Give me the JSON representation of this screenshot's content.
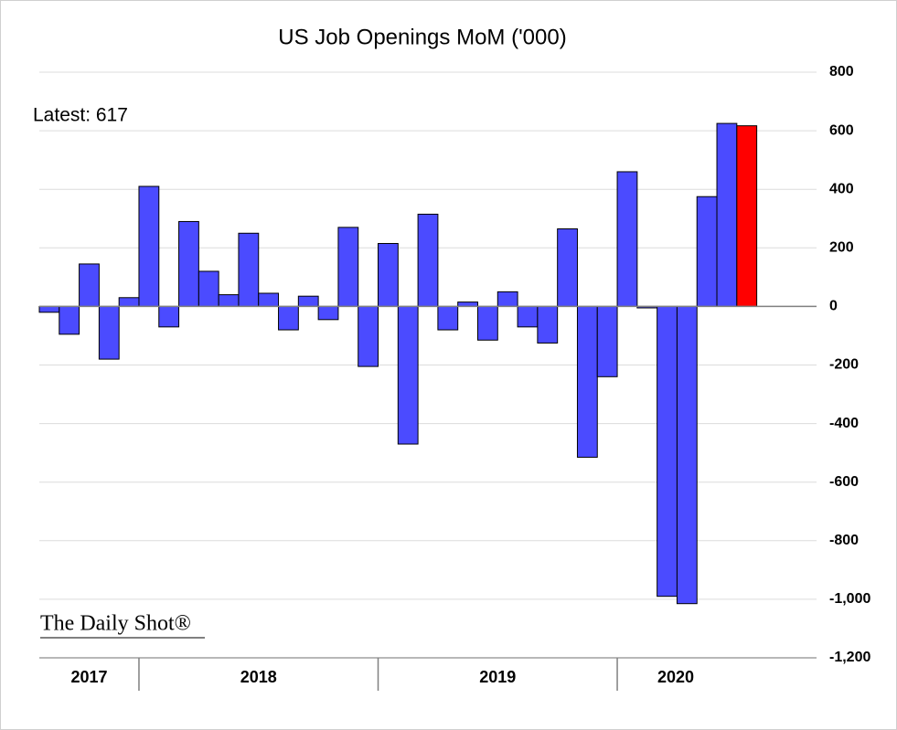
{
  "chart_data": {
    "type": "bar",
    "title": "US Job Openings MoM ('000)",
    "annotation": "Latest:  617",
    "watermark": "The Daily Shot®",
    "categories": [
      null,
      null,
      null,
      null,
      null,
      null,
      null,
      null,
      null,
      null,
      null,
      null,
      null,
      null,
      null,
      null,
      null,
      null,
      null,
      null,
      null,
      null,
      null,
      null,
      null,
      null,
      null,
      null,
      null,
      null,
      null,
      null,
      null,
      null,
      null,
      null
    ],
    "values": [
      -20,
      -95,
      145,
      -180,
      30,
      410,
      -70,
      290,
      120,
      40,
      250,
      45,
      -80,
      35,
      -45,
      270,
      -205,
      215,
      -470,
      315,
      -80,
      15,
      -115,
      50,
      -70,
      -125,
      265,
      -515,
      -240,
      460,
      -5,
      -990,
      -1015,
      375,
      625,
      617
    ],
    "color": "#4b4bff",
    "highlight_color": "#ff0000",
    "highlight_index": 35,
    "year_groups": [
      {
        "label": "2017",
        "span": 5
      },
      {
        "label": "2018",
        "span": 12
      },
      {
        "label": "2019",
        "span": 12
      },
      {
        "label": "2020",
        "span": 7
      }
    ],
    "ylim": [
      -1200,
      800
    ],
    "yticks": [
      {
        "value": -1200,
        "label": "-1,200"
      },
      {
        "value": -1000,
        "label": "-1,000"
      },
      -800,
      -600,
      -400,
      -200,
      0,
      200,
      400,
      600,
      800
    ],
    "grid": true,
    "y_axis_side": "right"
  }
}
